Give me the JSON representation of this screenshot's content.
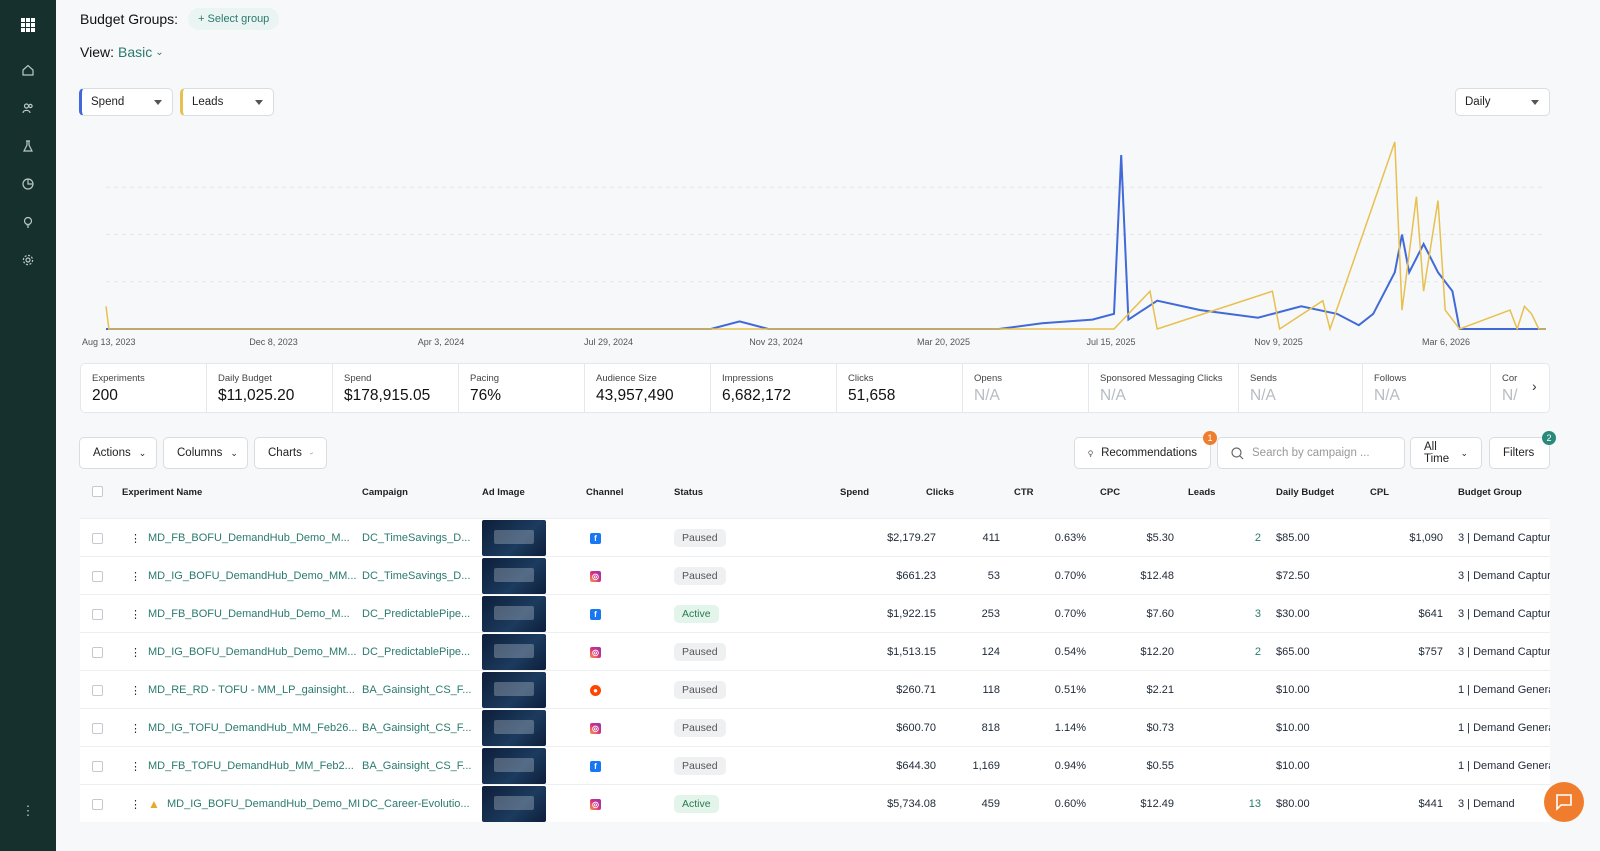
{
  "sidebar": {
    "icons": [
      "apps-grid-icon",
      "home-icon",
      "users-icon",
      "flask-icon",
      "pie-chart-icon",
      "lightbulb-icon",
      "gear-icon",
      "more-icon"
    ]
  },
  "header": {
    "budget_groups_label": "Budget Groups:",
    "select_group": "+ Select group",
    "view_label": "View:",
    "view_value": "Basic"
  },
  "dropdowns": {
    "metric1": "Spend",
    "metric2": "Leads",
    "interval": "Daily"
  },
  "chart_data": {
    "type": "line",
    "x_ticks": [
      "Aug 13, 2023",
      "Dec 8, 2023",
      "Apr 3, 2024",
      "Jul 29, 2024",
      "Nov 23, 2024",
      "Mar 20, 2025",
      "Jul 15, 2025",
      "Nov 9, 2025",
      "Mar 6, 2026"
    ],
    "series": [
      {
        "color": "#4169d8",
        "points": [
          [
            0,
            0
          ],
          [
            0.42,
            0
          ],
          [
            0.44,
            0.04
          ],
          [
            0.46,
            0
          ],
          [
            0.62,
            0
          ],
          [
            0.65,
            0.03
          ],
          [
            0.685,
            0.05
          ],
          [
            0.7,
            0.08
          ],
          [
            0.705,
            0.92
          ],
          [
            0.71,
            0.05
          ],
          [
            0.73,
            0.15
          ],
          [
            0.76,
            0.1
          ],
          [
            0.8,
            0.06
          ],
          [
            0.83,
            0.12
          ],
          [
            0.855,
            0.08
          ],
          [
            0.87,
            0.02
          ],
          [
            0.88,
            0.08
          ],
          [
            0.895,
            0.3
          ],
          [
            0.9,
            0.5
          ],
          [
            0.905,
            0.3
          ],
          [
            0.915,
            0.45
          ],
          [
            0.925,
            0.3
          ],
          [
            0.935,
            0.2
          ],
          [
            0.94,
            0.0
          ],
          [
            1.0,
            0.0
          ]
        ]
      },
      {
        "color": "#e8c04f",
        "points": [
          [
            0,
            0.12
          ],
          [
            0.002,
            0
          ],
          [
            0.7,
            0
          ],
          [
            0.725,
            0.2
          ],
          [
            0.73,
            0
          ],
          [
            0.81,
            0.2
          ],
          [
            0.815,
            0
          ],
          [
            0.845,
            0.15
          ],
          [
            0.85,
            0
          ],
          [
            0.895,
            0.99
          ],
          [
            0.9,
            0.1
          ],
          [
            0.91,
            0.7
          ],
          [
            0.915,
            0.2
          ],
          [
            0.925,
            0.68
          ],
          [
            0.93,
            0.1
          ],
          [
            0.94,
            0
          ],
          [
            0.975,
            0.1
          ],
          [
            0.98,
            0
          ],
          [
            0.985,
            0.12
          ],
          [
            0.99,
            0.08
          ],
          [
            0.995,
            0
          ],
          [
            1.0,
            0
          ]
        ]
      }
    ]
  },
  "stats": [
    {
      "label": "Experiments",
      "value": "200"
    },
    {
      "label": "Daily Budget",
      "value": "$11,025.20"
    },
    {
      "label": "Spend",
      "value": "$178,915.05"
    },
    {
      "label": "Pacing",
      "value": "76%"
    },
    {
      "label": "Audience Size",
      "value": "43,957,490"
    },
    {
      "label": "Impressions",
      "value": "6,682,172"
    },
    {
      "label": "Clicks",
      "value": "51,658"
    },
    {
      "label": "Opens",
      "value": "N/A"
    },
    {
      "label": "Sponsored Messaging Clicks",
      "value": "N/A"
    },
    {
      "label": "Sends",
      "value": "N/A"
    },
    {
      "label": "Follows",
      "value": "N/A"
    },
    {
      "label": "Cor",
      "value": "N/"
    }
  ],
  "toolbar": {
    "actions": "Actions",
    "columns": "Columns",
    "charts": "Charts",
    "recommendations": "Recommendations",
    "rec_badge": "1",
    "search_placeholder": "Search by campaign ...",
    "time_range": "All Time",
    "filters": "Filters",
    "filters_badge": "2"
  },
  "table": {
    "headers": [
      "Experiment Name",
      "Campaign",
      "Ad Image",
      "Channel",
      "Status",
      "Spend",
      "Clicks",
      "CTR",
      "CPC",
      "Leads",
      "Daily Budget",
      "CPL",
      "Budget Group"
    ],
    "rows": [
      {
        "name": "MD_FB_BOFU_DemandHub_Demo_M...",
        "campaign": "DC_TimeSavings_D...",
        "channel": "fb",
        "status": "Paused",
        "spend": "$2,179.27",
        "clicks": "411",
        "ctr": "0.63%",
        "cpc": "$5.30",
        "leads": "2",
        "budget": "$85.00",
        "cpl": "$1,090",
        "group": "3 | Demand Captur"
      },
      {
        "name": "MD_IG_BOFU_DemandHub_Demo_MM...",
        "campaign": "DC_TimeSavings_D...",
        "channel": "ig",
        "status": "Paused",
        "spend": "$661.23",
        "clicks": "53",
        "ctr": "0.70%",
        "cpc": "$12.48",
        "leads": "",
        "budget": "$72.50",
        "cpl": "",
        "group": "3 | Demand Captur"
      },
      {
        "name": "MD_FB_BOFU_DemandHub_Demo_M...",
        "campaign": "DC_PredictablePipe...",
        "channel": "fb",
        "status": "Active",
        "spend": "$1,922.15",
        "clicks": "253",
        "ctr": "0.70%",
        "cpc": "$7.60",
        "leads": "3",
        "budget": "$30.00",
        "cpl": "$641",
        "group": "3 | Demand Captur"
      },
      {
        "name": "MD_IG_BOFU_DemandHub_Demo_MM...",
        "campaign": "DC_PredictablePipe...",
        "channel": "ig",
        "status": "Paused",
        "spend": "$1,513.15",
        "clicks": "124",
        "ctr": "0.54%",
        "cpc": "$12.20",
        "leads": "2",
        "budget": "$65.00",
        "cpl": "$757",
        "group": "3 | Demand Captur"
      },
      {
        "name": "MD_RE_RD - TOFU - MM_LP_gainsight...",
        "campaign": "BA_Gainsight_CS_F...",
        "channel": "re",
        "status": "Paused",
        "spend": "$260.71",
        "clicks": "118",
        "ctr": "0.51%",
        "cpc": "$2.21",
        "leads": "",
        "budget": "$10.00",
        "cpl": "",
        "group": "1 | Demand Genera"
      },
      {
        "name": "MD_IG_TOFU_DemandHub_MM_Feb26...",
        "campaign": "BA_Gainsight_CS_F...",
        "channel": "ig",
        "status": "Paused",
        "spend": "$600.70",
        "clicks": "818",
        "ctr": "1.14%",
        "cpc": "$0.73",
        "leads": "",
        "budget": "$10.00",
        "cpl": "",
        "group": "1 | Demand Genera"
      },
      {
        "name": "MD_FB_TOFU_DemandHub_MM_Feb2...",
        "campaign": "BA_Gainsight_CS_F...",
        "channel": "fb",
        "status": "Paused",
        "spend": "$644.30",
        "clicks": "1,169",
        "ctr": "0.94%",
        "cpc": "$0.55",
        "leads": "",
        "budget": "$10.00",
        "cpl": "",
        "group": "1 | Demand Genera"
      },
      {
        "name": "MD_IG_BOFU_DemandHub_Demo_MI",
        "campaign": "DC_Career-Evolutio...",
        "channel": "ig",
        "status": "Active",
        "spend": "$5,734.08",
        "clicks": "459",
        "ctr": "0.60%",
        "cpc": "$12.49",
        "leads": "13",
        "budget": "$80.00",
        "cpl": "$441",
        "group": "3 | Demand"
      }
    ]
  }
}
